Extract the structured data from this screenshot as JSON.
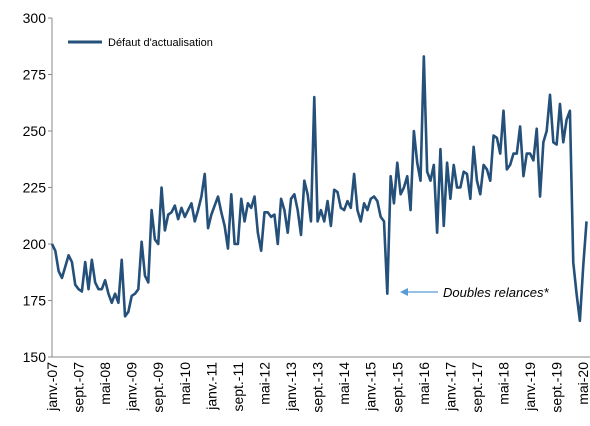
{
  "chart_data": {
    "type": "line",
    "categories": [
      "janv.-07",
      null,
      null,
      null,
      null,
      null,
      null,
      null,
      "sept.-07",
      null,
      null,
      null,
      null,
      null,
      null,
      null,
      "mai-08",
      null,
      null,
      null,
      null,
      null,
      null,
      null,
      "janv.-09",
      null,
      null,
      null,
      null,
      null,
      null,
      null,
      "sept.-09",
      null,
      null,
      null,
      null,
      null,
      null,
      null,
      "mai-10",
      null,
      null,
      null,
      null,
      null,
      null,
      null,
      "janv.-11",
      null,
      null,
      null,
      null,
      null,
      null,
      null,
      "sept.-11",
      null,
      null,
      null,
      null,
      null,
      null,
      null,
      "mai-12",
      null,
      null,
      null,
      null,
      null,
      null,
      null,
      "janv.-13",
      null,
      null,
      null,
      null,
      null,
      null,
      null,
      "sept.-13",
      null,
      null,
      null,
      null,
      null,
      null,
      null,
      "mai-14",
      null,
      null,
      null,
      null,
      null,
      null,
      null,
      "janv.-15",
      null,
      null,
      null,
      null,
      null,
      null,
      null,
      "sept.-15",
      null,
      null,
      null,
      null,
      null,
      null,
      null,
      "mai-16",
      null,
      null,
      null,
      null,
      null,
      null,
      null,
      "janv.-17",
      null,
      null,
      null,
      null,
      null,
      null,
      null,
      "sept.-17",
      null,
      null,
      null,
      null,
      null,
      null,
      null,
      "mai-18",
      null,
      null,
      null,
      null,
      null,
      null,
      null,
      "janv.-19",
      null,
      null,
      null,
      null,
      null,
      null,
      null,
      "sept.-19",
      null,
      null,
      null,
      null,
      null,
      null,
      null,
      "mai-20",
      null
    ],
    "series": [
      {
        "name": "Défaut d'actualisation",
        "color": "#24507a",
        "values": [
          200,
          197,
          188,
          185,
          190,
          195,
          192,
          182,
          180,
          179,
          192,
          180,
          193,
          183,
          180,
          180,
          184,
          178,
          174,
          178,
          174,
          193,
          168,
          170,
          177,
          178,
          180,
          201,
          186,
          183,
          215,
          202,
          200,
          225,
          206,
          213,
          214,
          217,
          211,
          216,
          212,
          215,
          218,
          210,
          215,
          221,
          231,
          207,
          213,
          217,
          221,
          214,
          208,
          198,
          222,
          200,
          200,
          220,
          210,
          218,
          216,
          221,
          205,
          197,
          214,
          214,
          212,
          213,
          200,
          220,
          215,
          205,
          220,
          222,
          215,
          204,
          228,
          222,
          210,
          265,
          210,
          215,
          210,
          219,
          208,
          224,
          223,
          216,
          215,
          219,
          216,
          231,
          215,
          210,
          218,
          215,
          220,
          221,
          219,
          212,
          210,
          178,
          230,
          218,
          236,
          222,
          225,
          230,
          215,
          250,
          236,
          228,
          283,
          232,
          228,
          235,
          205,
          242,
          208,
          236,
          220,
          235,
          225,
          225,
          232,
          231,
          220,
          243,
          228,
          222,
          235,
          233,
          228,
          248,
          247,
          240,
          259,
          233,
          235,
          240,
          240,
          252,
          230,
          240,
          240,
          237,
          251,
          221,
          245,
          250,
          266,
          245,
          244,
          262,
          245,
          255,
          259,
          192,
          178,
          166,
          190,
          210
        ]
      }
    ],
    "ylim": [
      150,
      300
    ],
    "yticks": [
      150,
      175,
      200,
      225,
      250,
      275,
      300
    ],
    "legend": "upper left",
    "grid": false,
    "annotation": "Doubles relances*"
  }
}
